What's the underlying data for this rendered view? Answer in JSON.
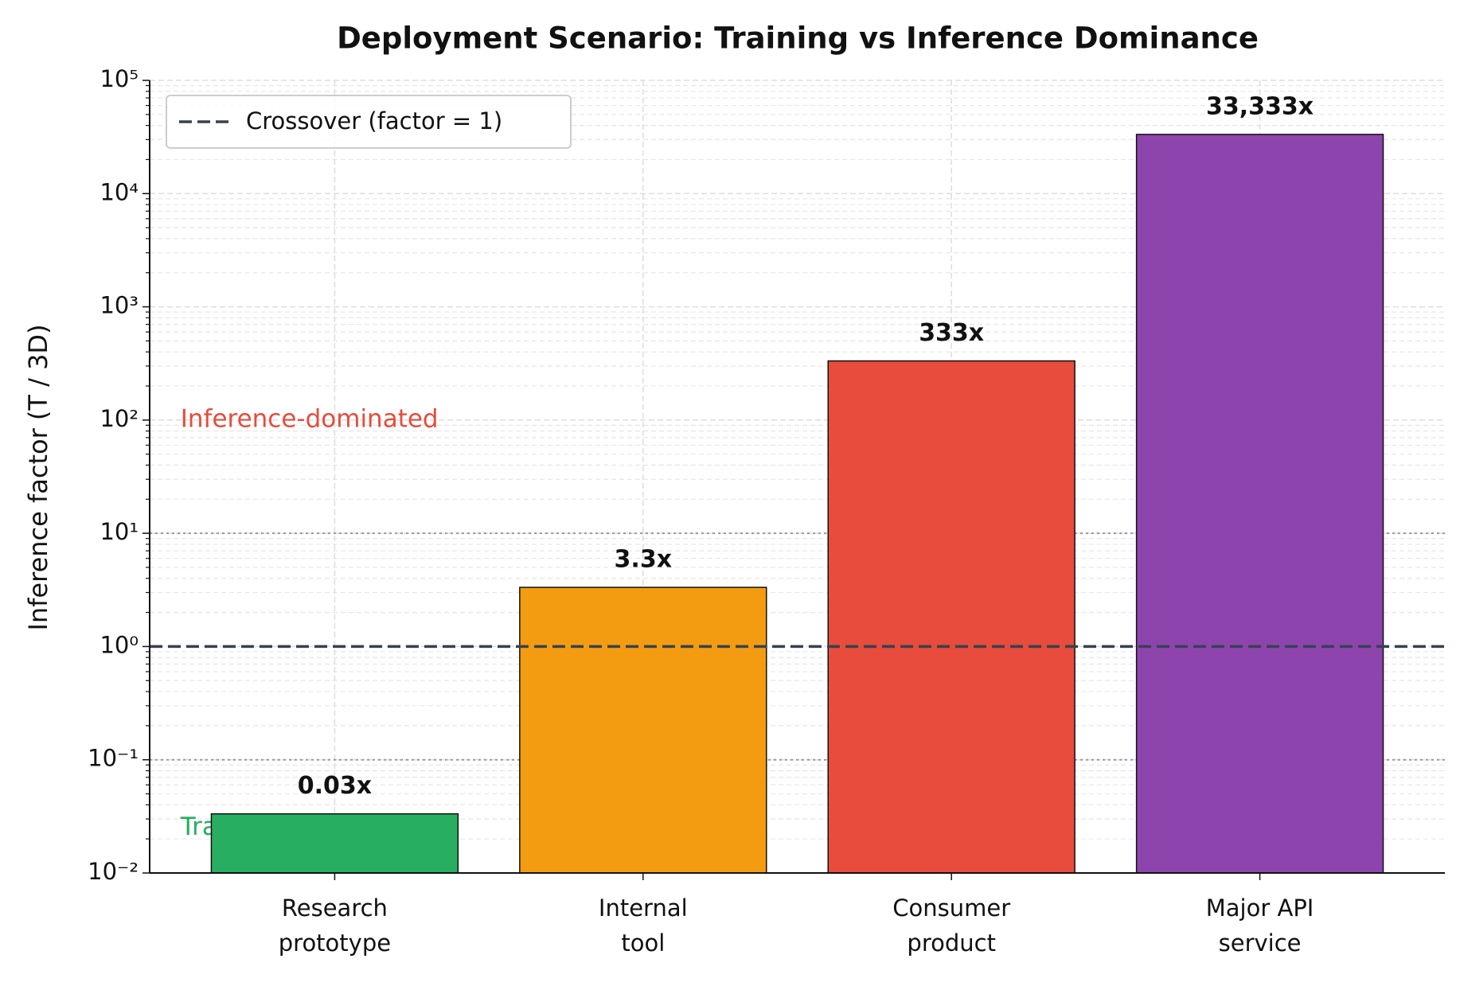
{
  "chart_data": {
    "type": "bar",
    "title": "Deployment Scenario: Training vs Inference Dominance",
    "y_label": "Inference factor (T / 3D)",
    "categories": [
      "Research\nprototype",
      "Internal\ntool",
      "Consumer\nproduct",
      "Major API\nservice"
    ],
    "values": [
      0.0333,
      3.33,
      333,
      33333
    ],
    "value_labels": [
      "0.03x",
      "3.3x",
      "333x",
      "33,333x"
    ],
    "colors": [
      "#27ae60",
      "#f39c12",
      "#e74c3c",
      "#8e44ad"
    ],
    "y_scale": "log",
    "ylim": [
      0.01,
      100000
    ],
    "yticks": [
      {
        "value": 0.01,
        "label": "10⁻²"
      },
      {
        "value": 0.1,
        "label": "10⁻¹"
      },
      {
        "value": 1,
        "label": "10⁰"
      },
      {
        "value": 10,
        "label": "10¹"
      },
      {
        "value": 100,
        "label": "10²"
      },
      {
        "value": 1000,
        "label": "10³"
      },
      {
        "value": 10000,
        "label": "10⁴"
      },
      {
        "value": 100000,
        "label": "10⁵"
      }
    ],
    "grid": true,
    "reference_lines": [
      {
        "value": 1,
        "style": "dashed",
        "color": "#374151",
        "label": "Crossover (factor = 1)"
      },
      {
        "value": 10,
        "style": "dotted",
        "color": "#999999"
      },
      {
        "value": 0.1,
        "style": "dotted",
        "color": "#999999"
      }
    ],
    "annotations": [
      {
        "text": "Inference-dominated",
        "color": "#e74c3c"
      },
      {
        "text": "Training-dominated",
        "color": "#27ae60"
      }
    ],
    "legend_position": "upper left"
  }
}
